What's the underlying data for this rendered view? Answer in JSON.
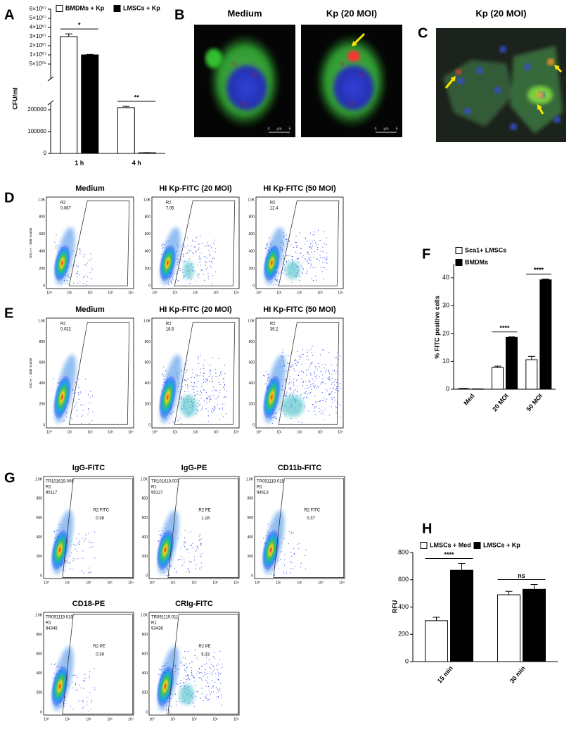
{
  "panels": {
    "letters": [
      "A",
      "B",
      "C",
      "D",
      "E",
      "F",
      "G",
      "H"
    ]
  },
  "chart_data": [
    {
      "type": "bar",
      "y_label": "CFU/ml",
      "categories": [
        "1 h",
        "4 h"
      ],
      "series": [
        {
          "name": "BMDMs + Kp",
          "color": "#ffffff",
          "values": [
            30000000,
            210000
          ],
          "errors": [
            3000000,
            6000
          ]
        },
        {
          "name": "LMSCs + Kp",
          "color": "#000000",
          "values": [
            10000000,
            3000
          ],
          "errors": [
            500000,
            500
          ]
        }
      ],
      "significance": [
        "*",
        "**"
      ],
      "axis_break": true,
      "ylim": [
        0,
        60000000
      ],
      "yticks": [
        0,
        100000,
        200000,
        {
          "value": 5000000,
          "label": "5×10⁰⁶"
        },
        {
          "value": 10000000,
          "label": "1×10⁰⁷"
        },
        {
          "value": 20000000,
          "label": "2×10⁰⁷"
        },
        {
          "value": 30000000,
          "label": "3×10⁰⁷"
        },
        {
          "value": 40000000,
          "label": "4×10⁰⁷"
        },
        {
          "value": 50000000,
          "label": "5×10⁰⁷"
        },
        {
          "value": 60000000,
          "label": "6×10⁰⁷"
        }
      ]
    },
    {
      "type": "bar",
      "y_label": "% FITC positive cells",
      "categories": [
        "Med",
        "20 MOI",
        "50 MOI"
      ],
      "series": [
        {
          "name": "Sca1+ LMSCs",
          "color": "#ffffff",
          "values": [
            0.2,
            7.8,
            10.6
          ],
          "errors": [
            0.1,
            0.5,
            1.2
          ]
        },
        {
          "name": "BMDMs",
          "color": "#000000",
          "values": [
            0.1,
            18.6,
            39.3
          ],
          "errors": [
            0,
            0.2,
            0.3
          ]
        }
      ],
      "significance": [
        null,
        "****",
        "****"
      ],
      "ylim": [
        0,
        45
      ],
      "yticks": [
        0,
        10,
        20,
        30,
        40
      ]
    },
    {
      "type": "bar",
      "y_label": "RFU",
      "categories": [
        "15 min",
        "30 min"
      ],
      "series": [
        {
          "name": "LMSCs + Med",
          "color": "#ffffff",
          "values": [
            300,
            490
          ],
          "errors": [
            25,
            25
          ]
        },
        {
          "name": "LMSCs + Kp",
          "color": "#000000",
          "values": [
            670,
            530
          ],
          "errors": [
            50,
            35
          ]
        }
      ],
      "significance": [
        "****",
        "ns"
      ],
      "ylim": [
        0,
        800
      ],
      "yticks": [
        0,
        200,
        400,
        600,
        800
      ]
    }
  ],
  "microscopy": {
    "B": {
      "titles": [
        "Medium",
        "Kp (20 MOI)"
      ],
      "scale_bar": [
        "0",
        "µm",
        "5"
      ]
    },
    "C": {
      "title": "Kp (20 MOI)"
    }
  },
  "flow": {
    "axis": {
      "y_label": "SSC-H :: Side Scatter",
      "yticks": [
        "1.0K",
        "800",
        "600",
        "400",
        "200",
        "0"
      ],
      "xticks": [
        "10⁰",
        "10¹",
        "10²",
        "10³",
        "10⁴"
      ]
    },
    "D": [
      {
        "title": "Medium",
        "gate": "R2",
        "percent": "0.087"
      },
      {
        "title": "HI Kp-FITC (20 MOI)",
        "gate": "R2",
        "percent": "7.05"
      },
      {
        "title": "HI Kp-FITC (50 MOI)",
        "gate": "R2",
        "percent": "12.4"
      }
    ],
    "E": [
      {
        "title": "Medium",
        "gate": "R2",
        "percent": "0.032"
      },
      {
        "title": "HI Kp-FITC (20 MOI)",
        "gate": "R2",
        "percent": "18.5"
      },
      {
        "title": "HI Kp-FITC (50 MOI)",
        "gate": "R2",
        "percent": "39.2"
      }
    ],
    "G": [
      {
        "title": "IgG-FITC",
        "file": "TR101619.006",
        "r1": "R1",
        "events": "95117",
        "gate": "R2 FITC",
        "percent": "0.38"
      },
      {
        "title": "IgG-PE",
        "file": "TR101619.007",
        "r1": "R1",
        "events": "95127",
        "gate": "R2 PE",
        "percent": "1.18"
      },
      {
        "title": "CD11b-FITC",
        "file": "TR091119.015",
        "r1": "R1",
        "events": "94513",
        "gate": "R2 FITC",
        "percent": "0.37"
      },
      {
        "title": "CD18-PE",
        "file": "TR091119.010",
        "r1": "R1",
        "events": "94346",
        "gate": "R2 PE",
        "percent": "0.39"
      },
      {
        "title": "CRIg-FITC",
        "file": "TR091119.011",
        "r1": "R1",
        "events": "93436",
        "gate": "R2 PE",
        "percent": "5.33"
      }
    ]
  }
}
